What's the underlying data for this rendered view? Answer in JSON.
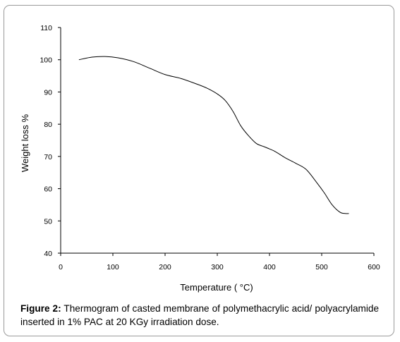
{
  "chart_data": {
    "type": "line",
    "xlabel": "Temperature ( °C)",
    "ylabel": "Weight loss %",
    "xlim": [
      0,
      600
    ],
    "ylim": [
      40,
      110
    ],
    "xticks": [
      0,
      100,
      200,
      300,
      400,
      500,
      600
    ],
    "yticks": [
      40,
      50,
      60,
      70,
      80,
      90,
      100,
      110
    ],
    "grid": false,
    "series": [
      {
        "x": [
          35,
          60,
          85,
          110,
          140,
          170,
          200,
          230,
          260,
          280,
          300,
          315,
          330,
          345,
          360,
          375,
          390,
          410,
          430,
          450,
          470,
          490,
          505,
          520,
          535,
          545,
          552
        ],
        "y": [
          100,
          100.8,
          101,
          100.6,
          99.4,
          97.4,
          95.4,
          94.2,
          92.5,
          91.2,
          89.4,
          87.4,
          84,
          79.5,
          76.4,
          74,
          73,
          71.6,
          69.6,
          67.9,
          66,
          62,
          58.7,
          55,
          52.7,
          52.3,
          52.3
        ],
        "color": "#000000"
      }
    ]
  },
  "caption": {
    "label": "Figure 2:",
    "text": "Thermogram of casted membrane of polymethacrylic acid/ polyacrylamide inserted in 1% PAC at 20 KGy irradiation dose."
  }
}
